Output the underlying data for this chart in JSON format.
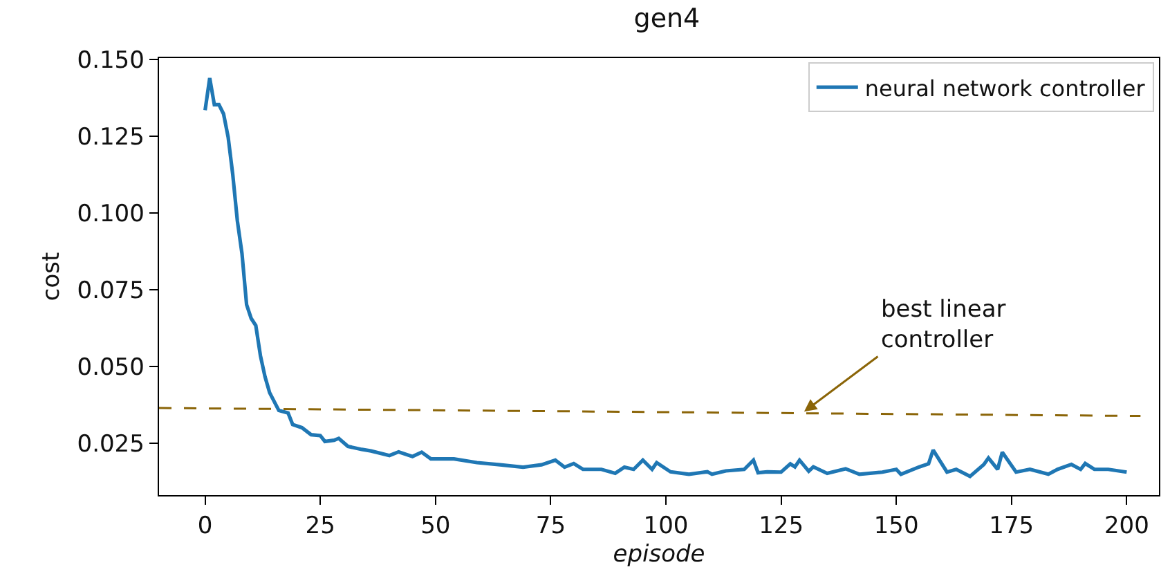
{
  "chart_data": {
    "type": "line",
    "title": "gen4",
    "xlabel": "episode",
    "ylabel": "cost",
    "series": [
      {
        "name": "neural network controller",
        "color": "#1f77b4",
        "x": [
          0,
          1,
          2,
          3,
          4,
          5,
          6,
          7,
          8,
          9,
          10,
          11,
          12,
          13,
          14,
          16,
          18,
          19,
          21,
          23,
          25,
          26,
          28,
          29,
          31,
          34,
          36,
          40,
          42,
          45,
          47,
          49,
          54,
          59,
          64,
          69,
          73,
          76,
          78,
          80,
          82,
          86,
          89,
          91,
          93,
          95,
          97,
          98,
          101,
          105,
          109,
          110,
          113,
          117,
          119,
          120,
          122,
          125,
          127,
          128,
          129,
          131,
          132,
          135,
          139,
          142,
          147,
          150,
          151,
          155,
          157,
          158,
          161,
          163,
          166,
          169,
          170,
          172,
          173,
          176,
          179,
          183,
          185,
          188,
          190,
          191,
          193,
          196,
          200
        ],
        "values": [
          0.1335,
          0.144,
          0.1353,
          0.1353,
          0.1323,
          0.1247,
          0.1125,
          0.0974,
          0.0868,
          0.0701,
          0.0656,
          0.0633,
          0.0535,
          0.0466,
          0.0414,
          0.0356,
          0.0348,
          0.031,
          0.03,
          0.0277,
          0.0274,
          0.0255,
          0.0259,
          0.0265,
          0.0239,
          0.0229,
          0.0224,
          0.0209,
          0.0221,
          0.0206,
          0.022,
          0.0198,
          0.0198,
          0.0186,
          0.0179,
          0.0171,
          0.0179,
          0.0194,
          0.0171,
          0.0183,
          0.0164,
          0.0164,
          0.0151,
          0.0171,
          0.0164,
          0.0194,
          0.0164,
          0.0186,
          0.0156,
          0.0148,
          0.0156,
          0.0148,
          0.0159,
          0.0164,
          0.0194,
          0.0153,
          0.0156,
          0.0155,
          0.0182,
          0.0172,
          0.0194,
          0.0158,
          0.0172,
          0.0151,
          0.0166,
          0.0148,
          0.0155,
          0.0164,
          0.0148,
          0.0172,
          0.0182,
          0.0227,
          0.0155,
          0.0164,
          0.0141,
          0.018,
          0.0201,
          0.0164,
          0.022,
          0.0155,
          0.0164,
          0.0148,
          0.0164,
          0.018,
          0.0164,
          0.0183,
          0.0164,
          0.0164,
          0.0155
        ]
      },
      {
        "color": "#8b6508",
        "line_style": "dashed",
        "x": [
          -10,
          203
        ],
        "values": [
          0.0364,
          0.0338
        ]
      }
    ],
    "annotations": [
      {
        "text": "best linear\ncontroller",
        "x": 130,
        "y": 0.0352
      }
    ],
    "xlim": [
      -10,
      207
    ],
    "ylim": [
      0.008,
      0.1505
    ],
    "xticks": [
      0,
      25,
      50,
      75,
      100,
      125,
      150,
      175,
      200
    ],
    "yticks": [
      {
        "value": 0.025,
        "label": "0.025"
      },
      {
        "value": 0.05,
        "label": "0.050"
      },
      {
        "value": 0.075,
        "label": "0.075"
      },
      {
        "value": 0.1,
        "label": "0.100"
      },
      {
        "value": 0.125,
        "label": "0.125"
      },
      {
        "value": 0.15,
        "label": "0.150"
      }
    ],
    "legend": "top right",
    "marker": "none",
    "line_style": "solid"
  }
}
